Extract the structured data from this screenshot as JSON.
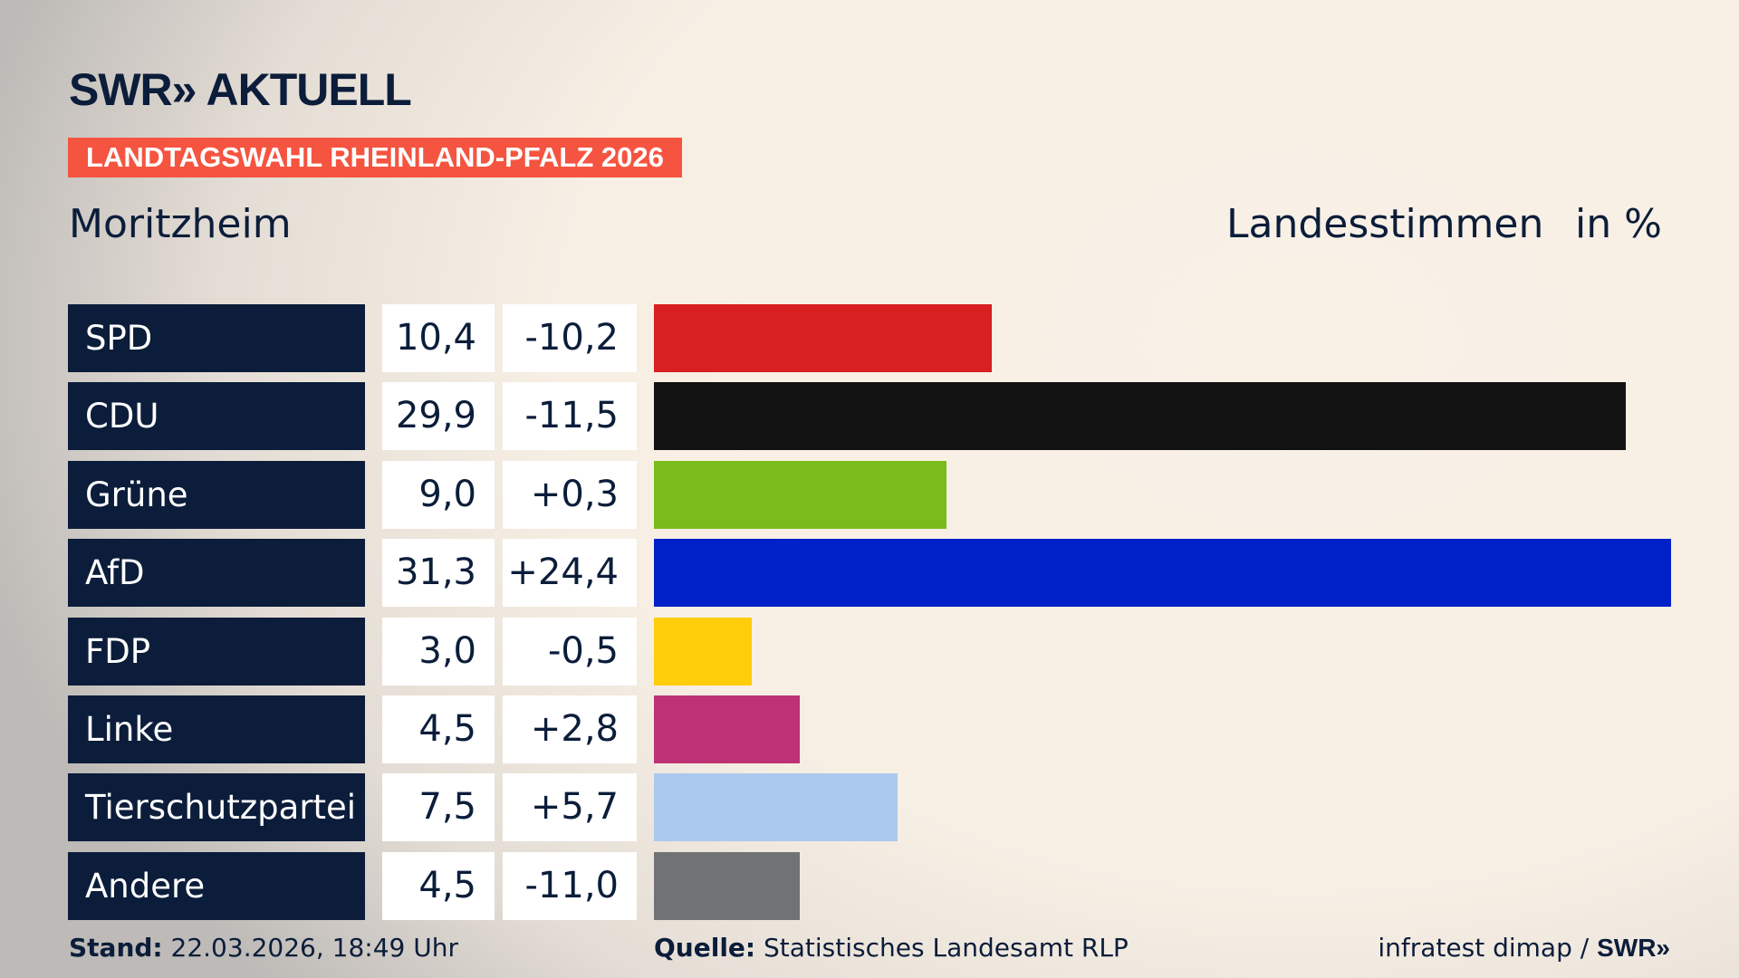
{
  "header": {
    "logo": "SWR» AKTUELL",
    "banner": "LANDTAGSWAHL RHEINLAND-PFALZ 2026",
    "place": "Moritzheim",
    "vote_type": "Landesstimmen",
    "unit": "in %"
  },
  "chart_data": {
    "type": "bar",
    "orientation": "horizontal",
    "xlim": [
      0,
      31.3
    ],
    "categories": [
      "SPD",
      "CDU",
      "Grüne",
      "AfD",
      "FDP",
      "Linke",
      "Tierschutzpartei",
      "Andere"
    ],
    "values": [
      10.4,
      29.9,
      9.0,
      31.3,
      3.0,
      4.5,
      7.5,
      4.5
    ],
    "value_labels": [
      "10,4",
      "29,9",
      "9,0",
      "31,3",
      "3,0",
      "4,5",
      "7,5",
      "4,5"
    ],
    "diff_labels": [
      "-10,2",
      "-11,5",
      "+0,3",
      "+24,4",
      "-0,5",
      "+2,8",
      "+5,7",
      "-11,0"
    ],
    "colors": [
      "#d81f22",
      "#121212",
      "#79bc1c",
      "#0021c8",
      "#ffcd0a",
      "#bd3275",
      "#abc8ef",
      "#717273"
    ]
  },
  "footer": {
    "stand_label": "Stand:",
    "stand": "22.03.2026, 18:49 Uhr",
    "source_label": "Quelle:",
    "source": "Statistisches Landesamt RLP",
    "credit": "infratest dimap / ",
    "credit_logo": "SWR»"
  }
}
